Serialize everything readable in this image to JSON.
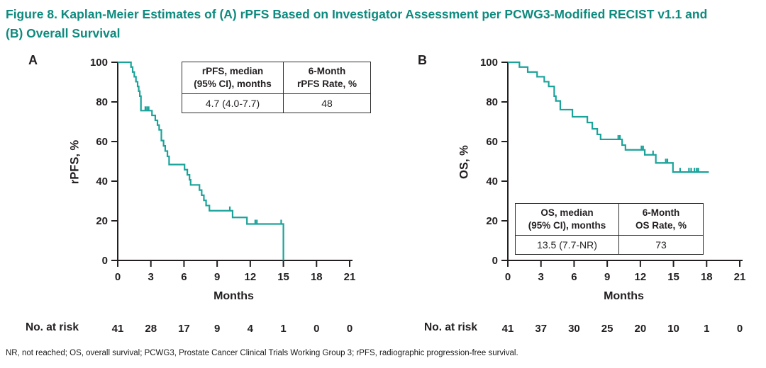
{
  "title": "Figure 8. Kaplan-Meier Estimates of (A) rPFS Based on Investigator Assessment per PCWG3-Modified RECIST v1.1 and (B) Overall Survival",
  "footer": "NR, not reached; OS, overall survival; PCWG3, Prostate Cancer Clinical Trials Working Group 3; rPFS, radiographic progression-free survival.",
  "colors": {
    "curve": "#1ba39a",
    "title_text": "#0e8a7e",
    "axis_text": "#231f20"
  },
  "no_at_risk_label": "No. at risk",
  "panels": [
    {
      "letter": "A",
      "y_axis_label": "rPFS, %",
      "x_axis_label": "Months",
      "table": {
        "col1_header": "rPFS, median\n(95% CI), months",
        "col2_header": "6-Month\nrPFS Rate, %",
        "col1_value": "4.7 (4.0-7.7)",
        "col2_value": "48"
      }
    },
    {
      "letter": "B",
      "y_axis_label": "OS, %",
      "x_axis_label": "Months",
      "table": {
        "col1_header": "OS, median\n(95% CI), months",
        "col2_header": "6-Month\nOS Rate, %",
        "col1_value": "13.5 (7.7-NR)",
        "col2_value": "73"
      }
    }
  ],
  "chart_data": [
    {
      "type": "line",
      "subtype": "kaplan_meier_step",
      "title": "A",
      "xlabel": "Months",
      "ylabel": "rPFS, %",
      "xlim": [
        0,
        21
      ],
      "ylim": [
        0,
        100
      ],
      "x_ticks": [
        0,
        3,
        6,
        9,
        12,
        15,
        18,
        21
      ],
      "y_ticks": [
        0,
        20,
        40,
        60,
        80,
        100
      ],
      "grid": false,
      "color": "#1ba39a",
      "median_95ci_months": "4.7 (4.0-7.7)",
      "rate_6_month_pct": 48,
      "steps": [
        [
          0,
          100
        ],
        [
          1.2,
          97.6
        ],
        [
          1.35,
          95.1
        ],
        [
          1.5,
          92.7
        ],
        [
          1.65,
          90.2
        ],
        [
          1.8,
          87.8
        ],
        [
          1.9,
          85.4
        ],
        [
          2.0,
          82.9
        ],
        [
          2.1,
          75.6
        ],
        [
          3.1,
          73.2
        ],
        [
          3.4,
          70.7
        ],
        [
          3.6,
          68.3
        ],
        [
          3.75,
          65.9
        ],
        [
          3.95,
          60.5
        ],
        [
          4.15,
          57.8
        ],
        [
          4.3,
          55.2
        ],
        [
          4.5,
          52.5
        ],
        [
          4.65,
          48.4
        ],
        [
          6.05,
          45.8
        ],
        [
          6.3,
          43.2
        ],
        [
          6.5,
          40.7
        ],
        [
          6.6,
          38.1
        ],
        [
          7.4,
          35.5
        ],
        [
          7.6,
          32.9
        ],
        [
          7.8,
          30.3
        ],
        [
          8.0,
          27.7
        ],
        [
          8.3,
          25.1
        ],
        [
          10.4,
          21.7
        ],
        [
          11.7,
          18.4
        ],
        [
          15.0,
          0
        ]
      ],
      "censors": [
        [
          2.5,
          75.6
        ],
        [
          2.65,
          75.6
        ],
        [
          2.8,
          75.6
        ],
        [
          10.15,
          25.1
        ],
        [
          12.45,
          18.4
        ],
        [
          12.6,
          18.4
        ],
        [
          14.8,
          18.4
        ]
      ],
      "at_risk": {
        "months": [
          0,
          3,
          6,
          9,
          12,
          15,
          18,
          21
        ],
        "counts": [
          41,
          28,
          17,
          9,
          4,
          1,
          0,
          0
        ]
      }
    },
    {
      "type": "line",
      "subtype": "kaplan_meier_step",
      "title": "B",
      "xlabel": "Months",
      "ylabel": "OS, %",
      "xlim": [
        0,
        21
      ],
      "ylim": [
        0,
        100
      ],
      "x_ticks": [
        0,
        3,
        6,
        9,
        12,
        15,
        18,
        21
      ],
      "y_ticks": [
        0,
        20,
        40,
        60,
        80,
        100
      ],
      "grid": false,
      "color": "#1ba39a",
      "median_95ci_months": "13.5 (7.7-NR)",
      "rate_6_month_pct": 73,
      "steps": [
        [
          0,
          100
        ],
        [
          1.05,
          97.6
        ],
        [
          1.8,
          95.1
        ],
        [
          2.65,
          92.7
        ],
        [
          3.3,
          90.2
        ],
        [
          3.7,
          87.8
        ],
        [
          4.2,
          82.9
        ],
        [
          4.35,
          80.5
        ],
        [
          4.75,
          76.1
        ],
        [
          5.85,
          72.5
        ],
        [
          7.2,
          69.6
        ],
        [
          7.65,
          66.4
        ],
        [
          8.1,
          63.6
        ],
        [
          8.4,
          61.1
        ],
        [
          10.35,
          58.2
        ],
        [
          10.65,
          55.8
        ],
        [
          12.4,
          53.3
        ],
        [
          13.4,
          49.2
        ],
        [
          14.95,
          44.6
        ],
        [
          18.2,
          44.6
        ]
      ],
      "censors": [
        [
          10.0,
          61.1
        ],
        [
          10.15,
          61.1
        ],
        [
          12.1,
          55.8
        ],
        [
          12.25,
          55.8
        ],
        [
          13.15,
          53.3
        ],
        [
          14.3,
          49.2
        ],
        [
          14.45,
          49.2
        ],
        [
          15.6,
          44.6
        ],
        [
          16.4,
          44.6
        ],
        [
          16.6,
          44.6
        ],
        [
          16.9,
          44.6
        ],
        [
          17.1,
          44.6
        ],
        [
          17.25,
          44.6
        ]
      ],
      "at_risk": {
        "months": [
          0,
          3,
          6,
          9,
          12,
          15,
          18,
          21
        ],
        "counts": [
          41,
          37,
          30,
          25,
          20,
          10,
          1,
          0
        ]
      }
    }
  ]
}
